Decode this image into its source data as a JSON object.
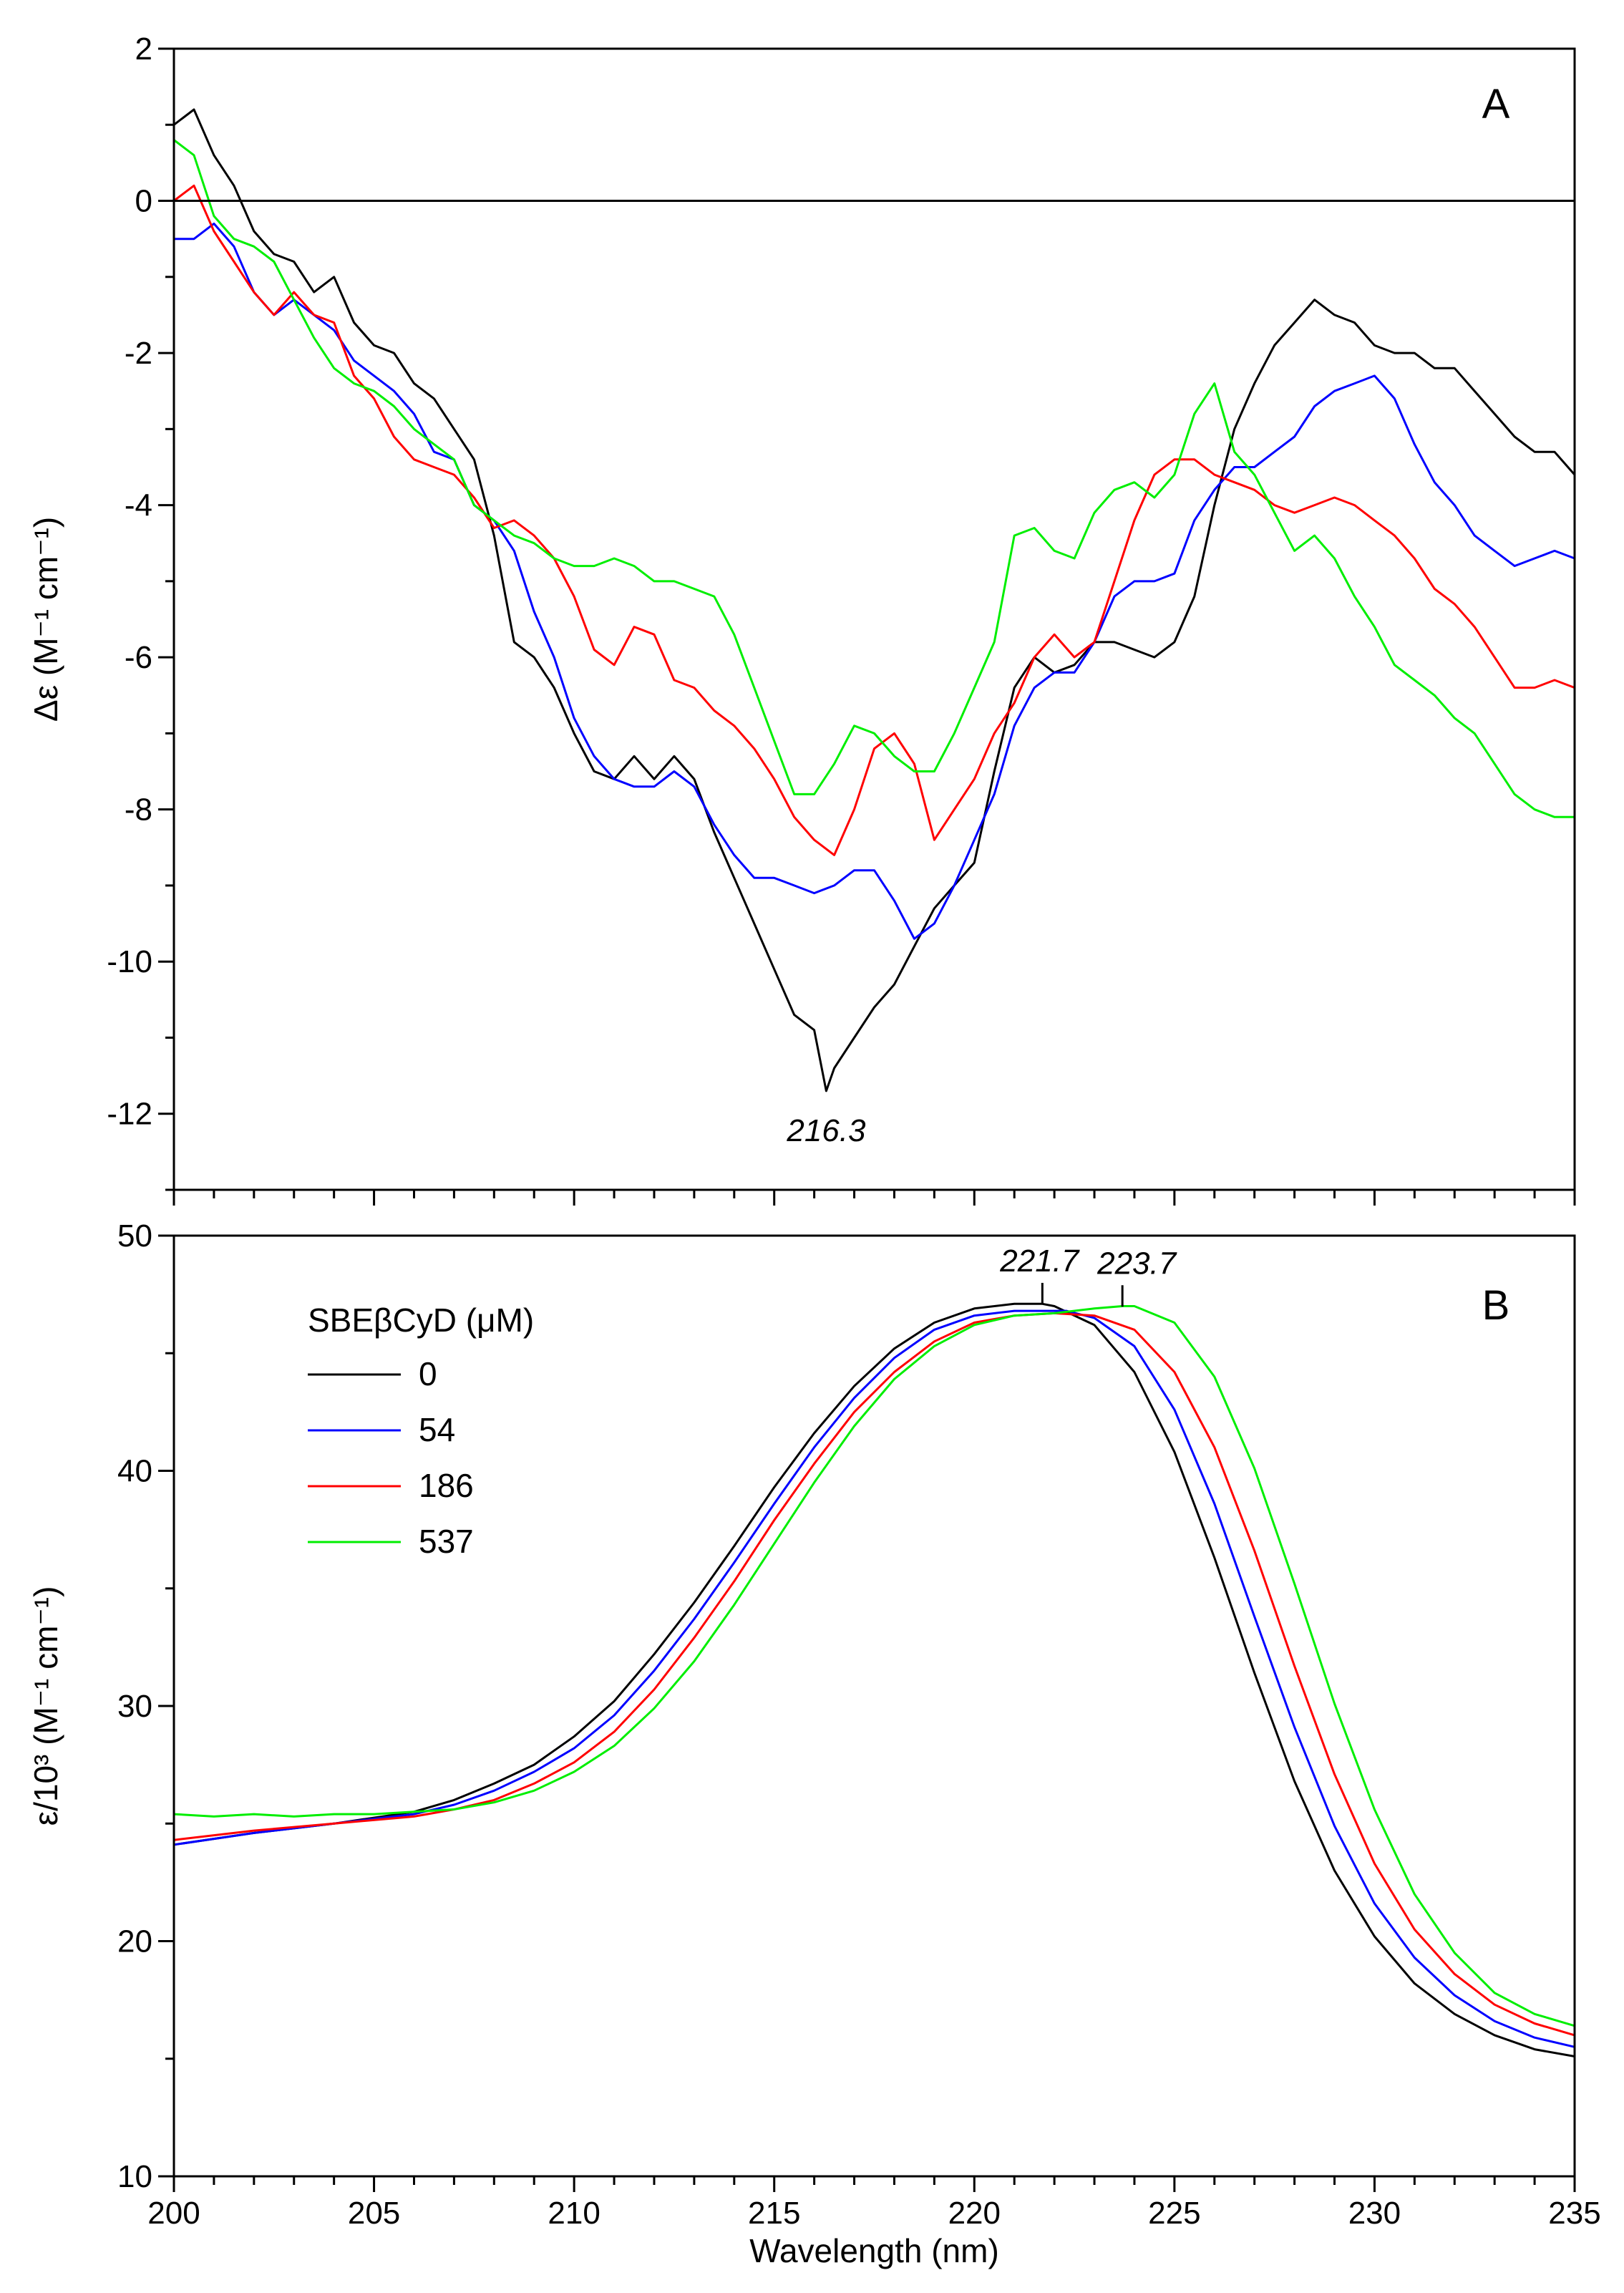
{
  "chart_data": [
    {
      "panel": "A",
      "type": "line",
      "ylabel": "Δε (M⁻¹ cm⁻¹)",
      "xlim": [
        200,
        235
      ],
      "ylim": [
        -13,
        2
      ],
      "yticks": [
        2,
        0,
        -2,
        -4,
        -6,
        -8,
        -10,
        -12
      ],
      "tick_labels": [
        "2",
        "0",
        "-2",
        "-4",
        "-6",
        "-8",
        "-10",
        "-12"
      ],
      "zero_line": true,
      "annotations": [
        {
          "text": "216.3",
          "x": 216.3,
          "y": -11.7
        }
      ],
      "series": [
        {
          "name": "0",
          "color": "#000000",
          "x": [
            200,
            200.5,
            201,
            201.5,
            202,
            202.5,
            203,
            203.5,
            204,
            204.5,
            205,
            205.5,
            206,
            206.5,
            207,
            207.5,
            208,
            208.5,
            209,
            209.5,
            210,
            210.5,
            211,
            211.5,
            212,
            212.5,
            213,
            213.5,
            214,
            214.5,
            215,
            215.5,
            216,
            216.3,
            216.5,
            217,
            217.5,
            218,
            218.5,
            219,
            219.5,
            220,
            220.5,
            221,
            221.5,
            222,
            222.5,
            223,
            223.5,
            224,
            224.5,
            225,
            225.5,
            226,
            226.5,
            227,
            227.5,
            228,
            228.5,
            229,
            229.5,
            230,
            230.5,
            231,
            231.5,
            232,
            232.5,
            233,
            233.5,
            234,
            234.5,
            235
          ],
          "y": [
            1.0,
            1.2,
            0.6,
            0.2,
            -0.4,
            -0.7,
            -0.8,
            -1.2,
            -1.0,
            -1.6,
            -1.9,
            -2.0,
            -2.4,
            -2.6,
            -3.0,
            -3.4,
            -4.4,
            -5.8,
            -6.0,
            -6.4,
            -7.0,
            -7.5,
            -7.6,
            -7.3,
            -7.6,
            -7.3,
            -7.6,
            -8.3,
            -8.9,
            -9.5,
            -10.1,
            -10.7,
            -10.9,
            -11.7,
            -11.4,
            -11.0,
            -10.6,
            -10.3,
            -9.8,
            -9.3,
            -9.0,
            -8.7,
            -7.5,
            -6.4,
            -6.0,
            -6.2,
            -6.1,
            -5.8,
            -5.8,
            -5.9,
            -6.0,
            -5.8,
            -5.2,
            -4.0,
            -3.0,
            -2.4,
            -1.9,
            -1.6,
            -1.3,
            -1.5,
            -1.6,
            -1.9,
            -2.0,
            -2.0,
            -2.2,
            -2.2,
            -2.5,
            -2.8,
            -3.1,
            -3.3,
            -3.3,
            -3.6
          ]
        },
        {
          "name": "54",
          "color": "#0000ff",
          "x": [
            200,
            200.5,
            201,
            201.5,
            202,
            202.5,
            203,
            203.5,
            204,
            204.5,
            205,
            205.5,
            206,
            206.5,
            207,
            207.5,
            208,
            208.5,
            209,
            209.5,
            210,
            210.5,
            211,
            211.5,
            212,
            212.5,
            213,
            213.5,
            214,
            214.5,
            215,
            215.5,
            216,
            216.5,
            217,
            217.5,
            218,
            218.5,
            219,
            219.5,
            220,
            220.5,
            221,
            221.5,
            222,
            222.5,
            223,
            223.5,
            224,
            224.5,
            225,
            225.5,
            226,
            226.5,
            227,
            227.5,
            228,
            228.5,
            229,
            229.5,
            230,
            230.5,
            231,
            231.5,
            232,
            232.5,
            233,
            233.5,
            234,
            234.5,
            235
          ],
          "y": [
            -0.5,
            -0.5,
            -0.3,
            -0.6,
            -1.2,
            -1.5,
            -1.3,
            -1.5,
            -1.7,
            -2.1,
            -2.3,
            -2.5,
            -2.8,
            -3.3,
            -3.4,
            -4.0,
            -4.2,
            -4.6,
            -5.4,
            -6.0,
            -6.8,
            -7.3,
            -7.6,
            -7.7,
            -7.7,
            -7.5,
            -7.7,
            -8.2,
            -8.6,
            -8.9,
            -8.9,
            -9.0,
            -9.1,
            -9.0,
            -8.8,
            -8.8,
            -9.2,
            -9.7,
            -9.5,
            -9.0,
            -8.4,
            -7.8,
            -6.9,
            -6.4,
            -6.2,
            -6.2,
            -5.8,
            -5.2,
            -5.0,
            -5.0,
            -4.9,
            -4.2,
            -3.8,
            -3.5,
            -3.5,
            -3.3,
            -3.1,
            -2.7,
            -2.5,
            -2.4,
            -2.3,
            -2.6,
            -3.2,
            -3.7,
            -4.0,
            -4.4,
            -4.6,
            -4.8,
            -4.7,
            -4.6,
            -4.7
          ]
        },
        {
          "name": "186",
          "color": "#ff0000",
          "x": [
            200,
            200.5,
            201,
            201.5,
            202,
            202.5,
            203,
            203.5,
            204,
            204.5,
            205,
            205.5,
            206,
            206.5,
            207,
            207.5,
            208,
            208.5,
            209,
            209.5,
            210,
            210.5,
            211,
            211.5,
            212,
            212.5,
            213,
            213.5,
            214,
            214.5,
            215,
            215.5,
            216,
            216.5,
            217,
            217.5,
            218,
            218.5,
            219,
            219.5,
            220,
            220.5,
            221,
            221.5,
            222,
            222.5,
            223,
            223.5,
            224,
            224.5,
            225,
            225.5,
            226,
            226.5,
            227,
            227.5,
            228,
            228.5,
            229,
            229.5,
            230,
            230.5,
            231,
            231.5,
            232,
            232.5,
            233,
            233.5,
            234,
            234.5,
            235
          ],
          "y": [
            0.0,
            0.2,
            -0.4,
            -0.8,
            -1.2,
            -1.5,
            -1.2,
            -1.5,
            -1.6,
            -2.3,
            -2.6,
            -3.1,
            -3.4,
            -3.5,
            -3.6,
            -3.9,
            -4.3,
            -4.2,
            -4.4,
            -4.7,
            -5.2,
            -5.9,
            -6.1,
            -5.6,
            -5.7,
            -6.3,
            -6.4,
            -6.7,
            -6.9,
            -7.2,
            -7.6,
            -8.1,
            -8.4,
            -8.6,
            -8.0,
            -7.2,
            -7.0,
            -7.4,
            -8.4,
            -8.0,
            -7.6,
            -7.0,
            -6.6,
            -6.0,
            -5.7,
            -6.0,
            -5.8,
            -5.0,
            -4.2,
            -3.6,
            -3.4,
            -3.4,
            -3.6,
            -3.7,
            -3.8,
            -4.0,
            -4.1,
            -4.0,
            -3.9,
            -4.0,
            -4.2,
            -4.4,
            -4.7,
            -5.1,
            -5.3,
            -5.6,
            -6.0,
            -6.4,
            -6.4,
            -6.3,
            -6.4
          ]
        },
        {
          "name": "537",
          "color": "#00ee00",
          "x": [
            200,
            200.5,
            201,
            201.5,
            202,
            202.5,
            203,
            203.5,
            204,
            204.5,
            205,
            205.5,
            206,
            206.5,
            207,
            207.5,
            208,
            208.5,
            209,
            209.5,
            210,
            210.5,
            211,
            211.5,
            212,
            212.5,
            213,
            213.5,
            214,
            214.5,
            215,
            215.5,
            216,
            216.5,
            217,
            217.5,
            218,
            218.5,
            219,
            219.5,
            220,
            220.5,
            221,
            221.5,
            222,
            222.5,
            223,
            223.5,
            224,
            224.5,
            225,
            225.5,
            226,
            226.5,
            227,
            227.5,
            228,
            228.5,
            229,
            229.5,
            230,
            230.5,
            231,
            231.5,
            232,
            232.5,
            233,
            233.5,
            234,
            234.5,
            235
          ],
          "y": [
            0.8,
            0.6,
            -0.2,
            -0.5,
            -0.6,
            -0.8,
            -1.3,
            -1.8,
            -2.2,
            -2.4,
            -2.5,
            -2.7,
            -3.0,
            -3.2,
            -3.4,
            -4.0,
            -4.2,
            -4.4,
            -4.5,
            -4.7,
            -4.8,
            -4.8,
            -4.7,
            -4.8,
            -5.0,
            -5.0,
            -5.1,
            -5.2,
            -5.7,
            -6.4,
            -7.1,
            -7.8,
            -7.8,
            -7.4,
            -6.9,
            -7.0,
            -7.3,
            -7.5,
            -7.5,
            -7.0,
            -6.4,
            -5.8,
            -4.4,
            -4.3,
            -4.6,
            -4.7,
            -4.1,
            -3.8,
            -3.7,
            -3.9,
            -3.6,
            -2.8,
            -2.4,
            -3.3,
            -3.6,
            -4.1,
            -4.6,
            -4.4,
            -4.7,
            -5.2,
            -5.6,
            -6.1,
            -6.3,
            -6.5,
            -6.8,
            -7.0,
            -7.4,
            -7.8,
            -8.0,
            -8.1,
            -8.1
          ]
        }
      ]
    },
    {
      "panel": "B",
      "type": "line",
      "xlabel": "Wavelength (nm)",
      "ylabel": "ε/10³ (M⁻¹ cm⁻¹)",
      "xlim": [
        200,
        235
      ],
      "ylim": [
        10,
        50
      ],
      "xticks": [
        200,
        205,
        210,
        215,
        220,
        225,
        230,
        235
      ],
      "x_tick_labels": [
        "200",
        "205",
        "210",
        "215",
        "220",
        "225",
        "230",
        "235"
      ],
      "yticks": [
        50,
        40,
        30,
        20,
        10
      ],
      "y_tick_labels": [
        "50",
        "40",
        "30",
        "20",
        "10"
      ],
      "legend_title": "SBEβCyD (μM)",
      "legend_position": "top-left",
      "annotations": [
        {
          "text": "221.7",
          "x": 221.7,
          "y": 47.2
        },
        {
          "text": "223.7",
          "x": 223.7,
          "y": 47.1
        }
      ],
      "series": [
        {
          "name": "0",
          "color": "#000000",
          "x": [
            200,
            202,
            204,
            206,
            207,
            208,
            209,
            210,
            211,
            212,
            213,
            214,
            215,
            216,
            217,
            218,
            219,
            220,
            221,
            221.7,
            222,
            223,
            224,
            225,
            226,
            227,
            228,
            229,
            230,
            231,
            232,
            233,
            234,
            235
          ],
          "y": [
            24.1,
            24.6,
            25.0,
            25.5,
            26.0,
            26.7,
            27.5,
            28.7,
            30.2,
            32.2,
            34.4,
            36.8,
            39.3,
            41.6,
            43.6,
            45.2,
            46.3,
            46.9,
            47.1,
            47.1,
            47.0,
            46.2,
            44.2,
            40.8,
            36.3,
            31.4,
            26.8,
            23.0,
            20.2,
            18.2,
            16.9,
            16.0,
            15.4,
            15.1
          ]
        },
        {
          "name": "54",
          "color": "#0000ff",
          "x": [
            200,
            202,
            204,
            206,
            207,
            208,
            209,
            210,
            211,
            212,
            213,
            214,
            215,
            216,
            217,
            218,
            219,
            220,
            221,
            222,
            222.3,
            223,
            224,
            225,
            226,
            227,
            228,
            229,
            230,
            231,
            232,
            233,
            234,
            235
          ],
          "y": [
            24.1,
            24.6,
            25.0,
            25.4,
            25.8,
            26.4,
            27.2,
            28.2,
            29.6,
            31.5,
            33.7,
            36.1,
            38.6,
            41.0,
            43.1,
            44.8,
            46.0,
            46.6,
            46.8,
            46.8,
            46.8,
            46.5,
            45.3,
            42.6,
            38.6,
            33.8,
            29.1,
            24.9,
            21.6,
            19.3,
            17.7,
            16.6,
            15.9,
            15.5
          ]
        },
        {
          "name": "186",
          "color": "#ff0000",
          "x": [
            200,
            202,
            204,
            206,
            207,
            208,
            209,
            210,
            211,
            212,
            213,
            214,
            215,
            216,
            217,
            218,
            219,
            220,
            221,
            222,
            223,
            224,
            225,
            226,
            227,
            228,
            229,
            230,
            231,
            232,
            233,
            234,
            235
          ],
          "y": [
            24.3,
            24.7,
            25.0,
            25.3,
            25.6,
            26.0,
            26.7,
            27.6,
            28.9,
            30.7,
            32.9,
            35.3,
            37.9,
            40.3,
            42.5,
            44.2,
            45.5,
            46.3,
            46.6,
            46.7,
            46.6,
            46.0,
            44.2,
            41.0,
            36.6,
            31.7,
            27.1,
            23.3,
            20.5,
            18.6,
            17.3,
            16.5,
            16.0
          ]
        },
        {
          "name": "537",
          "color": "#00ee00",
          "x": [
            200,
            201,
            202,
            203,
            204,
            205,
            206,
            207,
            208,
            209,
            210,
            211,
            212,
            213,
            214,
            215,
            216,
            217,
            218,
            219,
            220,
            221,
            222,
            223,
            223.7,
            224,
            225,
            226,
            227,
            228,
            229,
            230,
            231,
            232,
            233,
            234,
            235
          ],
          "y": [
            25.4,
            25.3,
            25.4,
            25.3,
            25.4,
            25.4,
            25.5,
            25.6,
            25.9,
            26.4,
            27.2,
            28.3,
            29.9,
            31.9,
            34.3,
            36.9,
            39.5,
            41.9,
            43.9,
            45.3,
            46.2,
            46.6,
            46.7,
            46.9,
            47.0,
            47.0,
            46.3,
            44.0,
            40.1,
            35.2,
            30.1,
            25.6,
            22.0,
            19.5,
            17.8,
            16.9,
            16.4
          ]
        }
      ]
    }
  ]
}
